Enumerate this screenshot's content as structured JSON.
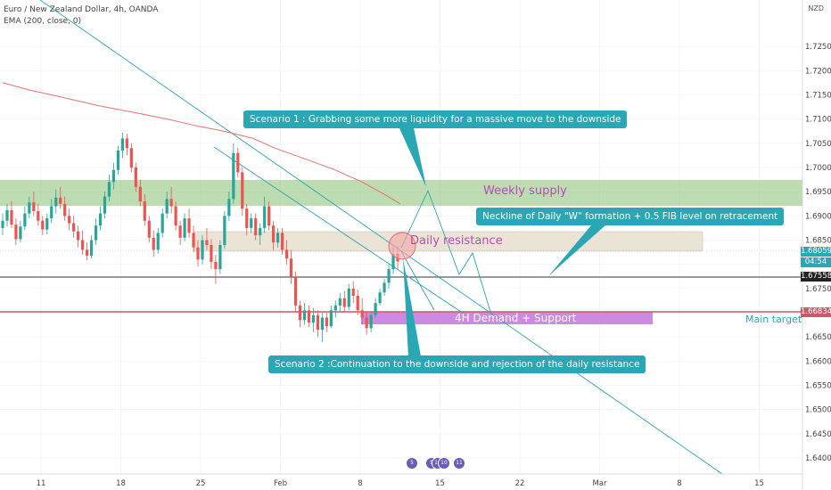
{
  "header": {
    "symbol_line": "Euro / New Zealand Dollar, 4h, OANDA",
    "indicator_line": "EMA (200, close, 0)"
  },
  "axis": {
    "currency": "NZD",
    "y_ticks": [
      "1.72500",
      "1.72000",
      "1.71500",
      "1.71000",
      "1.70500",
      "1.70000",
      "1.69500",
      "1.69000",
      "1.68500",
      "1.68000",
      "1.67500",
      "1.67000",
      "1.66500",
      "1.66000",
      "1.65500",
      "1.65000",
      "1.64500",
      "1.64000"
    ],
    "x_ticks": [
      "11",
      "18",
      "25",
      "Feb",
      "8",
      "15",
      "22",
      "Mar",
      "8",
      "15"
    ]
  },
  "price_tags": {
    "current": "1.68059",
    "countdown": "04:54",
    "level1": "1.67558",
    "level2": "1.66834"
  },
  "annotations": {
    "scenario1": "Scenario 1 : Grabbing some more liquidity for a massive move to the downside",
    "scenario2": "Scenario 2 :Continuation to the downside and rejection of the daily resistance",
    "neckline": "Neckline of Daily \"W\" formation + 0.5 FIB level on retracement",
    "weekly_supply": "Weekly supply",
    "daily_resistance": "Daily resistance",
    "demand": "4H Demand + Support",
    "main_target": "Main target"
  },
  "events": [
    "5",
    "5",
    "10",
    "10",
    "11"
  ],
  "colors": {
    "up": "#26a69a",
    "down": "#ef5350",
    "ema": "#e57373",
    "callout": "#2aa7b4",
    "weekly_supply": "#93c47d",
    "daily_resistance": "#e8dfcf",
    "demand": "#c77de0",
    "target_line": "#d0566b"
  },
  "chart_data": {
    "type": "candlestick",
    "price_range": [
      1.6367,
      1.7346
    ],
    "candles": [
      [
        1.6875,
        1.6905,
        1.686,
        1.689
      ],
      [
        1.689,
        1.6925,
        1.6878,
        1.6912
      ],
      [
        1.6912,
        1.693,
        1.6875,
        1.6882
      ],
      [
        1.6882,
        1.6895,
        1.684,
        1.6852
      ],
      [
        1.6852,
        1.689,
        1.6845,
        1.6878
      ],
      [
        1.6878,
        1.692,
        1.687,
        1.6905
      ],
      [
        1.6905,
        1.694,
        1.6895,
        1.6928
      ],
      [
        1.6928,
        1.695,
        1.69,
        1.691
      ],
      [
        1.691,
        1.6925,
        1.688,
        1.689
      ],
      [
        1.689,
        1.69,
        1.686,
        1.6872
      ],
      [
        1.6872,
        1.6905,
        1.6862,
        1.6895
      ],
      [
        1.6895,
        1.6935,
        1.6885,
        1.692
      ],
      [
        1.692,
        1.6955,
        1.6905,
        1.6938
      ],
      [
        1.6938,
        1.696,
        1.6915,
        1.6925
      ],
      [
        1.6925,
        1.694,
        1.689,
        1.69
      ],
      [
        1.69,
        1.6915,
        1.687,
        1.6885
      ],
      [
        1.6885,
        1.69,
        1.6855,
        1.6868
      ],
      [
        1.6868,
        1.688,
        1.6835,
        1.685
      ],
      [
        1.685,
        1.687,
        1.682,
        1.683
      ],
      [
        1.683,
        1.6845,
        1.6808,
        1.6818
      ],
      [
        1.6818,
        1.686,
        1.6812,
        1.685
      ],
      [
        1.685,
        1.6895,
        1.684,
        1.688
      ],
      [
        1.688,
        1.692,
        1.687,
        1.6905
      ],
      [
        1.6905,
        1.695,
        1.6895,
        1.694
      ],
      [
        1.694,
        1.6985,
        1.693,
        1.697
      ],
      [
        1.697,
        1.701,
        1.6955,
        1.6995
      ],
      [
        1.6995,
        1.7045,
        1.6985,
        1.7035
      ],
      [
        1.7035,
        1.7072,
        1.702,
        1.706
      ],
      [
        1.706,
        1.707,
        1.7025,
        1.704
      ],
      [
        1.704,
        1.705,
        1.699,
        1.7
      ],
      [
        1.7,
        1.701,
        1.695,
        1.696
      ],
      [
        1.696,
        1.6975,
        1.692,
        1.693
      ],
      [
        1.693,
        1.6945,
        1.688,
        1.689
      ],
      [
        1.689,
        1.69,
        1.6845,
        1.6855
      ],
      [
        1.6855,
        1.687,
        1.6815,
        1.683
      ],
      [
        1.683,
        1.6875,
        1.6822,
        1.6865
      ],
      [
        1.6865,
        1.6915,
        1.6855,
        1.6905
      ],
      [
        1.6905,
        1.695,
        1.6895,
        1.6935
      ],
      [
        1.6935,
        1.696,
        1.6905,
        1.692
      ],
      [
        1.692,
        1.693,
        1.687,
        1.688
      ],
      [
        1.688,
        1.689,
        1.684,
        1.6855
      ],
      [
        1.6855,
        1.6905,
        1.6848,
        1.6895
      ],
      [
        1.6895,
        1.6915,
        1.6855,
        1.6865
      ],
      [
        1.6865,
        1.688,
        1.6825,
        1.6835
      ],
      [
        1.6835,
        1.685,
        1.6795,
        1.681
      ],
      [
        1.681,
        1.686,
        1.68,
        1.685
      ],
      [
        1.685,
        1.6875,
        1.683,
        1.684
      ],
      [
        1.684,
        1.6852,
        1.679,
        1.6805
      ],
      [
        1.6805,
        1.682,
        1.676,
        1.679
      ],
      [
        1.679,
        1.685,
        1.678,
        1.684
      ],
      [
        1.684,
        1.691,
        1.6832,
        1.69
      ],
      [
        1.69,
        1.695,
        1.689,
        1.6935
      ],
      [
        1.6935,
        1.705,
        1.6925,
        1.703
      ],
      [
        1.703,
        1.704,
        1.698,
        1.699
      ],
      [
        1.699,
        1.7,
        1.69,
        1.6915
      ],
      [
        1.6915,
        1.6925,
        1.686,
        1.6875
      ],
      [
        1.6875,
        1.6905,
        1.6865,
        1.6895
      ],
      [
        1.6895,
        1.6905,
        1.685,
        1.686
      ],
      [
        1.686,
        1.6885,
        1.684,
        1.6875
      ],
      [
        1.6875,
        1.694,
        1.6865,
        1.692
      ],
      [
        1.692,
        1.693,
        1.687,
        1.688
      ],
      [
        1.688,
        1.689,
        1.683,
        1.6845
      ],
      [
        1.6845,
        1.6875,
        1.6835,
        1.6865
      ],
      [
        1.6865,
        1.6875,
        1.682,
        1.683
      ],
      [
        1.683,
        1.685,
        1.68,
        1.6812
      ],
      [
        1.6812,
        1.683,
        1.676,
        1.6775
      ],
      [
        1.6775,
        1.6785,
        1.67,
        1.6715
      ],
      [
        1.6715,
        1.6725,
        1.667,
        1.6685
      ],
      [
        1.6685,
        1.672,
        1.6675,
        1.6705
      ],
      [
        1.6705,
        1.6715,
        1.667,
        1.668
      ],
      [
        1.668,
        1.671,
        1.666,
        1.6695
      ],
      [
        1.6695,
        1.6705,
        1.665,
        1.6665
      ],
      [
        1.6665,
        1.67,
        1.664,
        1.669
      ],
      [
        1.669,
        1.67,
        1.666,
        1.6672
      ],
      [
        1.6672,
        1.6715,
        1.6668,
        1.6705
      ],
      [
        1.6705,
        1.6725,
        1.669,
        1.6715
      ],
      [
        1.6715,
        1.674,
        1.67,
        1.673
      ],
      [
        1.673,
        1.6745,
        1.67,
        1.6712
      ],
      [
        1.6712,
        1.676,
        1.6705,
        1.675
      ],
      [
        1.675,
        1.6765,
        1.672,
        1.6735
      ],
      [
        1.6735,
        1.6748,
        1.6695,
        1.6705
      ],
      [
        1.6705,
        1.673,
        1.6675,
        1.669
      ],
      [
        1.669,
        1.67,
        1.6655,
        1.6668
      ],
      [
        1.6668,
        1.67,
        1.666,
        1.6695
      ],
      [
        1.6695,
        1.673,
        1.669,
        1.672
      ],
      [
        1.672,
        1.675,
        1.6715,
        1.6742
      ],
      [
        1.6742,
        1.677,
        1.6735,
        1.6762
      ],
      [
        1.6762,
        1.68,
        1.675,
        1.679
      ],
      [
        1.679,
        1.6835,
        1.678,
        1.6822
      ],
      [
        1.6822,
        1.6838,
        1.679,
        1.6806
      ]
    ],
    "ema_200": [
      [
        1.7175,
        0
      ],
      [
        1.716,
        10
      ],
      [
        1.7145,
        22
      ],
      [
        1.7128,
        35
      ],
      [
        1.7112,
        50
      ],
      [
        1.7098,
        62
      ],
      [
        1.7085,
        72
      ],
      [
        1.7074,
        82
      ],
      [
        1.706,
        92
      ],
      [
        1.704,
        100
      ],
      [
        1.702,
        110
      ],
      [
        1.6995,
        122
      ],
      [
        1.697,
        132
      ],
      [
        1.6945,
        140
      ],
      [
        1.6925,
        146
      ]
    ],
    "levels": [
      1.68059,
      1.67558,
      1.66834
    ],
    "zones": [
      {
        "name": "Weekly supply",
        "top": 1.695,
        "bottom": 1.6895
      },
      {
        "name": "Daily resistance",
        "top": 1.6845,
        "bottom": 1.6808
      },
      {
        "name": "4H Demand + Support",
        "top": 1.6685,
        "bottom": 1.6658
      }
    ]
  }
}
